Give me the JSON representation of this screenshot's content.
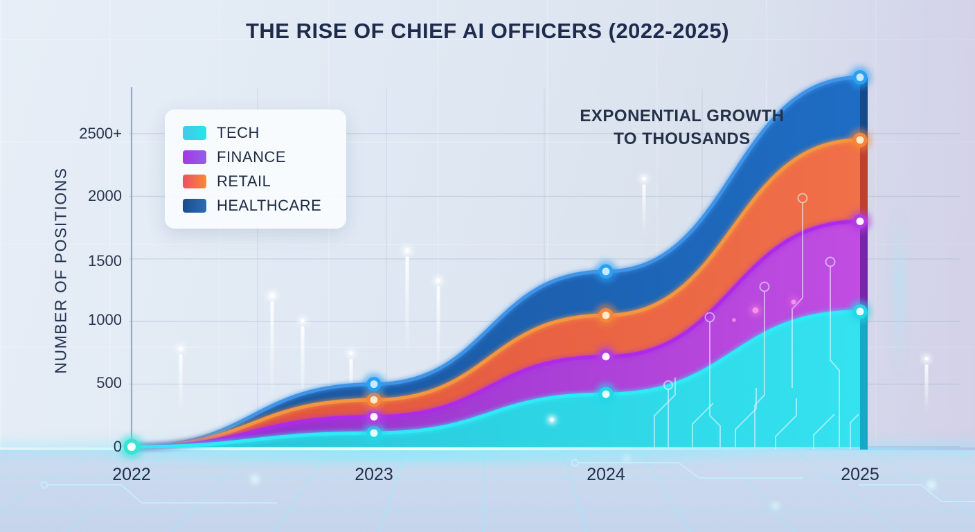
{
  "title": "THE RISE OF CHIEF AI OFFICERS (2022-2025)",
  "annotation": {
    "line1": "EXPONENTIAL GROWTH",
    "line2": "TO THOUSANDS"
  },
  "y_axis": {
    "title": "NUMBER OF POSITIONS",
    "ticks": [
      "2500+",
      "2000",
      "1500",
      "1000",
      "500",
      "0"
    ]
  },
  "x_axis": {
    "labels": [
      "2022",
      "2023",
      "2024",
      "2025"
    ]
  },
  "legend": {
    "items": [
      {
        "label": "TECH",
        "swatch_from": "#45c8ec",
        "swatch_to": "#23e6e9"
      },
      {
        "label": "FINANCE",
        "swatch_from": "#a637e6",
        "swatch_to": "#9061e2"
      },
      {
        "label": "RETAIL",
        "swatch_from": "#f04f64",
        "swatch_to": "#f58a38"
      },
      {
        "label": "HEALTHCARE",
        "swatch_from": "#1b4c8e",
        "swatch_to": "#2f6cb4"
      }
    ]
  },
  "chart_data": {
    "type": "area",
    "stacked": true,
    "title": "THE RISE OF CHIEF AI OFFICERS (2022-2025)",
    "xlabel": "",
    "ylabel": "NUMBER OF POSITIONS",
    "x": [
      "2022",
      "2023",
      "2024",
      "2025"
    ],
    "ylim": [
      0,
      3000
    ],
    "yticks": [
      0,
      500,
      1000,
      1500,
      2000,
      2500
    ],
    "ytick_labels": [
      "0",
      "500",
      "1000",
      "1500",
      "2000",
      "2500+"
    ],
    "grid": true,
    "legend_position": "top-left",
    "annotation": "EXPONENTIAL GROWTH TO THOUSANDS",
    "series": [
      {
        "name": "TECH",
        "values": [
          0,
          110,
          420,
          1080
        ],
        "cumulative": [
          0,
          110,
          420,
          1080
        ],
        "fill_from": "#23c3d6",
        "fill_to": "#35e2ef",
        "edge": "#2fe9f6",
        "side": "#14a9c4",
        "marker_ring": "#22d7e8",
        "marker_center": "#eaffff"
      },
      {
        "name": "FINANCE",
        "values": [
          0,
          130,
          300,
          720
        ],
        "cumulative": [
          0,
          240,
          720,
          1800
        ],
        "fill_from": "#8a2dc6",
        "fill_to": "#c14de2",
        "edge": "#ac2ce8",
        "side": "#7726a8",
        "marker_ring": "#b13de2",
        "marker_center": "#fdf4ff"
      },
      {
        "name": "RETAIL",
        "values": [
          0,
          135,
          330,
          650
        ],
        "cumulative": [
          0,
          375,
          1050,
          2450
        ],
        "fill_from": "#de4f3c",
        "fill_to": "#f07048",
        "edge": "#f5953f",
        "side": "#c0402f",
        "marker_ring": "#f5853b",
        "marker_center": "#ffeacb"
      },
      {
        "name": "HEALTHCARE",
        "values": [
          0,
          125,
          350,
          500
        ],
        "cumulative": [
          0,
          500,
          1400,
          2950
        ],
        "fill_from": "#1b5196",
        "fill_to": "#1e6dc4",
        "edge": "#4194e8",
        "side": "#15498a",
        "marker_ring": "#2b9ff2",
        "marker_center": "#c8e9ff"
      }
    ]
  }
}
